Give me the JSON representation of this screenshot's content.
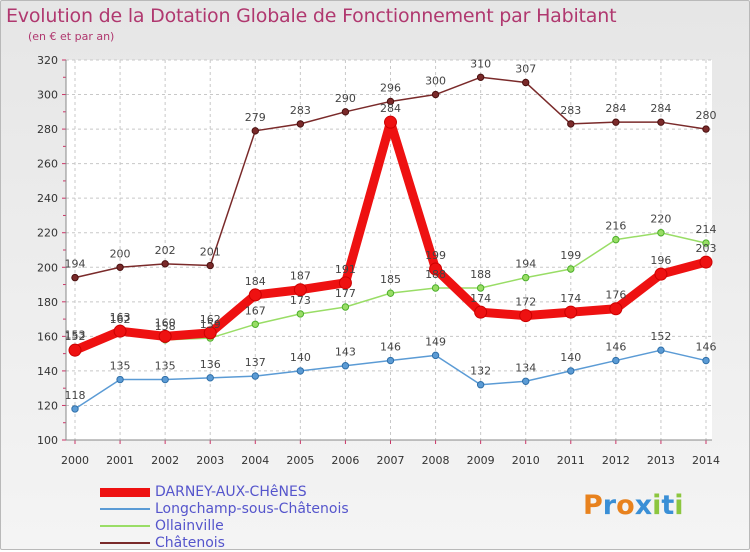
{
  "header": {
    "title": "Evolution de la Dotation Globale de Fonctionnement par Habitant",
    "subtitle": "(en € et par an)"
  },
  "chart_data": {
    "type": "line",
    "title": "Evolution de la Dotation Globale de Fonctionnement par Habitant",
    "ylabel": "(en € et par an)",
    "xlabel": "",
    "ylim": [
      100,
      320
    ],
    "y_ticks": [
      100,
      120,
      140,
      160,
      180,
      200,
      220,
      240,
      260,
      280,
      300,
      320
    ],
    "grid": true,
    "categories": [
      "2000",
      "2001",
      "2002",
      "2003",
      "2004",
      "2005",
      "2006",
      "2007",
      "2008",
      "2009",
      "2010",
      "2011",
      "2012",
      "2013",
      "2014"
    ],
    "series": [
      {
        "name": "DARNEY-AUX-CHêNES",
        "color": "#ee1111",
        "values": [
          152,
          163,
          160,
          162,
          184,
          187,
          191,
          284,
          199,
          174,
          172,
          174,
          176,
          196,
          203
        ]
      },
      {
        "name": "Longchamp-sous-Châtenois",
        "color": "#5b9bd5",
        "values": [
          118,
          135,
          135,
          136,
          137,
          140,
          143,
          146,
          149,
          132,
          134,
          140,
          146,
          152,
          146
        ]
      },
      {
        "name": "Ollainville",
        "color": "#99dd66",
        "values": [
          153,
          162,
          158,
          159,
          167,
          173,
          177,
          185,
          188,
          188,
          194,
          199,
          216,
          220,
          214
        ]
      },
      {
        "name": "Châtenois",
        "color": "#7a2a2a",
        "values": [
          194,
          200,
          202,
          201,
          279,
          283,
          290,
          296,
          300,
          310,
          307,
          283,
          284,
          284,
          280
        ]
      }
    ],
    "legend_position": "bottom-left"
  },
  "brand": {
    "text": "Proxiti"
  }
}
